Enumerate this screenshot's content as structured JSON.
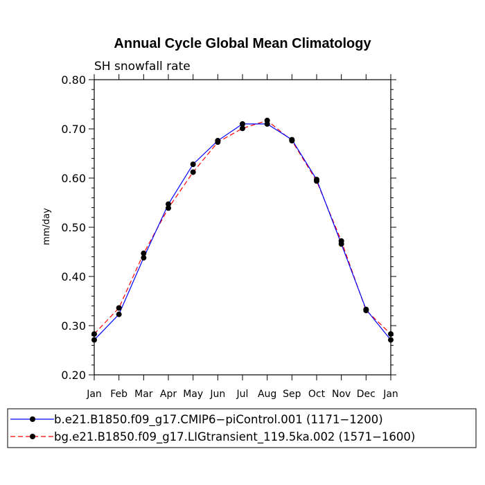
{
  "chart_data": {
    "type": "line",
    "title": "Annual Cycle Global Mean Climatology",
    "subtitle": "SH snowfall rate",
    "ylabel": "mm/day",
    "xlabel": "",
    "ylim": [
      0.2,
      0.8
    ],
    "yticks": [
      "0.20",
      "0.30",
      "0.40",
      "0.50",
      "0.60",
      "0.70",
      "0.80"
    ],
    "categories": [
      "Jan",
      "Feb",
      "Mar",
      "Apr",
      "May",
      "Jun",
      "Jul",
      "Aug",
      "Sep",
      "Oct",
      "Nov",
      "Dec",
      "Jan"
    ],
    "series": [
      {
        "name": "b.e21.B1850.f09_g17.CMIP6−piControl.001 (1171−1200)",
        "color": "#0000ff",
        "dash": "solid",
        "values": [
          0.271,
          0.323,
          0.438,
          0.547,
          0.628,
          0.676,
          0.71,
          0.71,
          0.678,
          0.597,
          0.466,
          0.333,
          0.271
        ]
      },
      {
        "name": "bg.e21.B1850.f09_g17.LIGtransient_119.5ka.002 (1571−1600)",
        "color": "#ff0000",
        "dash": "dashed",
        "values": [
          0.283,
          0.336,
          0.447,
          0.539,
          0.612,
          0.673,
          0.701,
          0.717,
          0.676,
          0.594,
          0.472,
          0.331,
          0.283
        ]
      }
    ],
    "legend": "bottom"
  }
}
